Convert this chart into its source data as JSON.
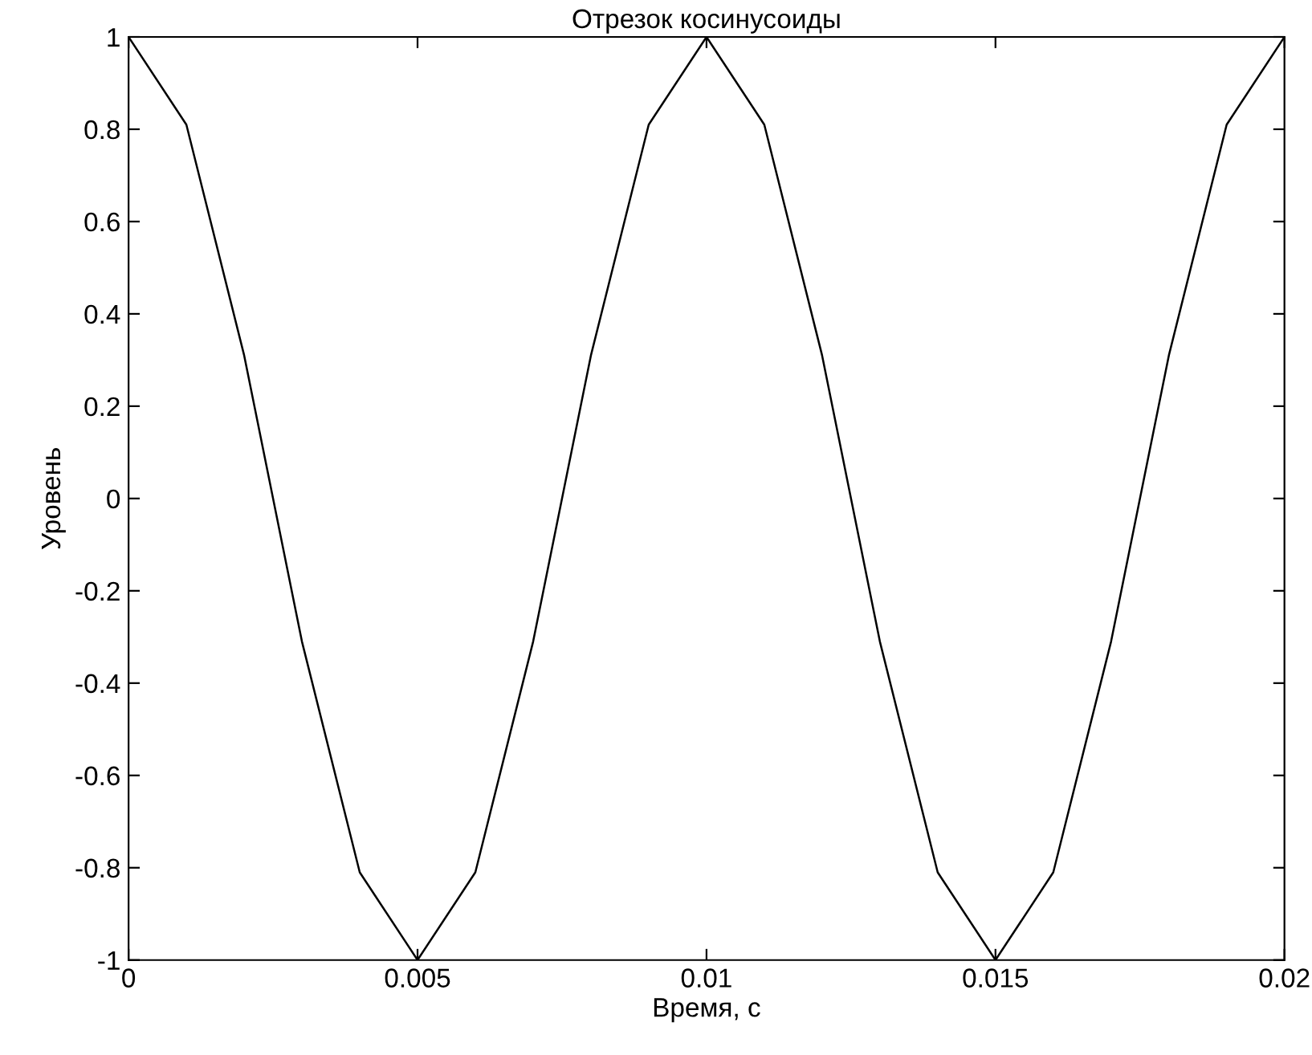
{
  "chart_data": {
    "type": "line",
    "title": "Отрезок косинусоиды",
    "xlabel": "Время, с",
    "ylabel": "Уровень",
    "x": [
      0,
      0.001,
      0.002,
      0.003,
      0.004,
      0.005,
      0.006,
      0.007,
      0.008,
      0.009,
      0.01,
      0.011,
      0.012,
      0.013,
      0.014,
      0.015,
      0.016,
      0.017,
      0.018,
      0.019,
      0.02
    ],
    "series": [
      {
        "color": "#000000",
        "values": [
          1,
          0.81,
          0.31,
          -0.31,
          -0.81,
          -1,
          -0.81,
          -0.31,
          0.31,
          0.81,
          1,
          0.81,
          0.31,
          -0.31,
          -0.81,
          -1,
          -0.81,
          -0.31,
          0.31,
          0.81,
          1
        ]
      }
    ],
    "xlim": [
      0,
      0.02
    ],
    "xticks": [
      0,
      0.005,
      0.01,
      0.015,
      0.02
    ],
    "ylim": [
      -1,
      1
    ],
    "yticks": [
      -1,
      -0.8,
      -0.6,
      -0.4,
      -0.2,
      0,
      0.2,
      0.4,
      0.6,
      0.8,
      1
    ],
    "grid": false
  }
}
